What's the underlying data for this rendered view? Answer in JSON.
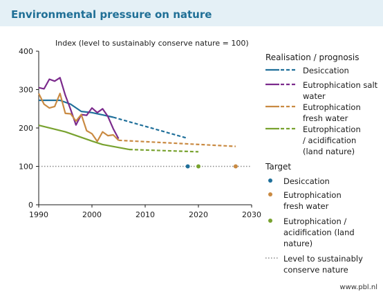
{
  "header": {
    "title": "Environmental pressure on nature"
  },
  "footer": {
    "source": "www.pbl.nl"
  },
  "colors": {
    "desiccation": "#1f6f9a",
    "eutro_salt": "#7b2a8c",
    "eutro_fresh": "#c98a42",
    "eutro_acid": "#78a22f",
    "level": "#888888"
  },
  "legend": {
    "realisation_title": "Realisation / prognosis",
    "realisation_items": [
      {
        "label": "Desiccation",
        "series": "desiccation"
      },
      {
        "label": "Eutrophication salt water",
        "series": "eutro_salt"
      },
      {
        "label": "Eutrophication fresh water",
        "series": "eutro_fresh"
      },
      {
        "label": "Eutrophication / acidification (land nature)",
        "series": "eutro_acid"
      }
    ],
    "target_title": "Target",
    "target_items": [
      {
        "label": "Desiccation",
        "series": "desiccation"
      },
      {
        "label": "Eutrophication fresh water",
        "series": "eutro_fresh"
      },
      {
        "label": "Eutrophication / acidification (land nature)",
        "series": "eutro_acid"
      }
    ],
    "level_label": "Level to sustainably conserve nature"
  },
  "chart_data": {
    "type": "line",
    "title": "Environmental pressure on nature",
    "ylabel": "Index (level to sustainably conserve nature = 100)",
    "xlabel": "",
    "xlim": [
      1990,
      2030
    ],
    "ylim": [
      0,
      400
    ],
    "x_ticks": [
      1990,
      2000,
      2010,
      2020,
      2030
    ],
    "y_ticks": [
      0,
      100,
      200,
      300,
      400
    ],
    "grid": false,
    "legend_position": "right",
    "reference_line": {
      "y": 100,
      "style": "dotted"
    },
    "series": [
      {
        "key": "desiccation",
        "name": "Desiccation",
        "realisation": [
          [
            1990,
            272
          ],
          [
            1992,
            272
          ],
          [
            1994,
            272
          ],
          [
            1996,
            262
          ],
          [
            1998,
            243
          ],
          [
            2000,
            240
          ],
          [
            2002,
            234
          ],
          [
            2004,
            228
          ]
        ],
        "prognosis": [
          [
            2004,
            228
          ],
          [
            2018,
            173
          ]
        ],
        "target": {
          "year": 2018,
          "value": 100
        }
      },
      {
        "key": "eutro_salt",
        "name": "Eutrophication salt water",
        "realisation": [
          [
            1990,
            305
          ],
          [
            1991,
            302
          ],
          [
            1992,
            327
          ],
          [
            1993,
            322
          ],
          [
            1994,
            331
          ],
          [
            1995,
            285
          ],
          [
            1996,
            248
          ],
          [
            1997,
            208
          ],
          [
            1998,
            235
          ],
          [
            1999,
            233
          ],
          [
            2000,
            252
          ],
          [
            2001,
            240
          ],
          [
            2002,
            250
          ],
          [
            2003,
            230
          ],
          [
            2004,
            198
          ],
          [
            2005,
            172
          ]
        ],
        "prognosis": [],
        "target": null
      },
      {
        "key": "eutro_fresh",
        "name": "Eutrophication fresh water",
        "realisation": [
          [
            1990,
            290
          ],
          [
            1991,
            262
          ],
          [
            1992,
            252
          ],
          [
            1993,
            256
          ],
          [
            1994,
            290
          ],
          [
            1995,
            238
          ],
          [
            1996,
            237
          ],
          [
            1997,
            218
          ],
          [
            1998,
            235
          ],
          [
            1999,
            193
          ],
          [
            2000,
            185
          ],
          [
            2001,
            165
          ],
          [
            2002,
            190
          ],
          [
            2003,
            180
          ],
          [
            2004,
            182
          ],
          [
            2005,
            168
          ]
        ],
        "prognosis": [
          [
            2005,
            168
          ],
          [
            2027,
            152
          ]
        ],
        "target": {
          "year": 2027,
          "value": 100
        }
      },
      {
        "key": "eutro_acid",
        "name": "Eutrophication / acidification (land nature)",
        "realisation": [
          [
            1990,
            207
          ],
          [
            1995,
            190
          ],
          [
            2000,
            166
          ],
          [
            2002,
            157
          ],
          [
            2007,
            144
          ]
        ],
        "prognosis": [
          [
            2007,
            144
          ],
          [
            2020,
            138
          ]
        ],
        "target": {
          "year": 2020,
          "value": 100
        }
      }
    ]
  }
}
